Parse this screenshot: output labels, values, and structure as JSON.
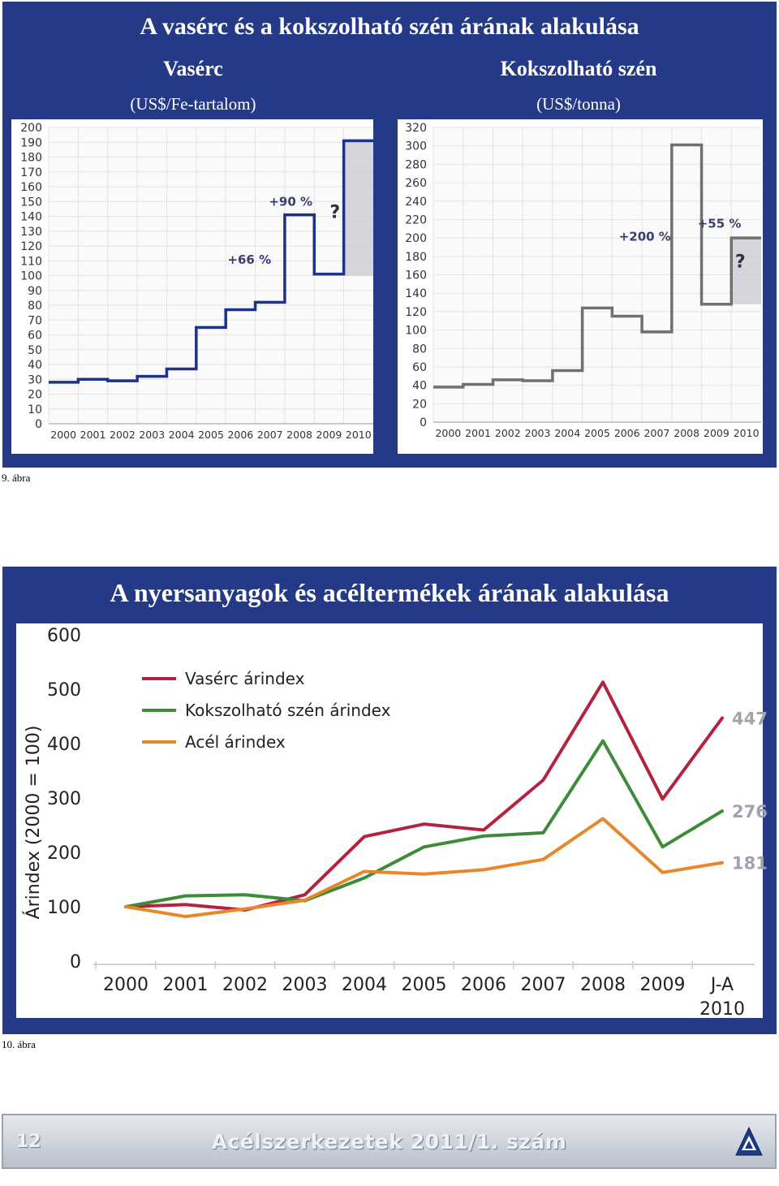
{
  "figure9": {
    "title": "A vasérc és a kokszolható szén árának alakulása",
    "caption": "9. ábra"
  },
  "figure10": {
    "title": "A nyersanyagok és acéltermékek árának alakulása",
    "caption": "10. ábra"
  },
  "footer": {
    "page_number": "12",
    "journal": "Acélszerkezetek 2011/1. szám",
    "logo_icon": "triangle-logo-icon"
  },
  "colors": {
    "panel_bg": "#243a86",
    "step_line": "#1e3388",
    "step_line_gray": "#707070",
    "iron_ore": "#b52240",
    "coking_coal": "#3e8c3a",
    "steel": "#e8862a",
    "value_label": "#a0a3aa"
  },
  "chart_data": [
    {
      "type": "line",
      "step": true,
      "title": "Vasérc",
      "subtitle": "(US$/Fe-tartalom)",
      "categories": [
        "2000",
        "2001",
        "2002",
        "2003",
        "2004",
        "2005",
        "2006",
        "2007",
        "2008",
        "2009",
        "2010"
      ],
      "ylim": [
        0,
        200
      ],
      "y_ticks": [
        "0",
        "10",
        "20",
        "30",
        "40",
        "50",
        "60",
        "70",
        "80",
        "90",
        "100",
        "110",
        "120",
        "130",
        "140",
        "150",
        "160",
        "170",
        "180",
        "190",
        "200"
      ],
      "x_points": [
        2000,
        2001,
        2002,
        2003,
        2004,
        2005,
        2006,
        2007,
        2008,
        2009,
        2010
      ],
      "values": [
        28,
        30,
        29,
        32,
        37,
        65,
        77,
        82,
        141,
        101,
        191
      ],
      "grid": true,
      "forecast_band": {
        "from": 2010,
        "to": 2011,
        "ymin": 100,
        "ymax": 191
      },
      "annotations": [
        {
          "text": "+66 %",
          "x": 2006.8,
          "y": 108
        },
        {
          "text": "+90 %",
          "x": 2008.2,
          "y": 147
        },
        {
          "text": "?",
          "x": 2009.7,
          "y": 139
        }
      ]
    },
    {
      "type": "line",
      "step": true,
      "title": "Kokszolható szén",
      "subtitle": "(US$/tonna)",
      "categories": [
        "2000",
        "2001",
        "2002",
        "2003",
        "2004",
        "2005",
        "2006",
        "2007",
        "2008",
        "2009",
        "2010"
      ],
      "ylim": [
        0,
        320
      ],
      "y_ticks": [
        "0",
        "20",
        "40",
        "60",
        "80",
        "100",
        "120",
        "140",
        "160",
        "180",
        "200",
        "220",
        "240",
        "260",
        "280",
        "300",
        "320"
      ],
      "x_points": [
        2000,
        2001,
        2002,
        2003,
        2004,
        2005,
        2006,
        2007,
        2008,
        2009,
        2010
      ],
      "values": [
        38,
        41,
        46,
        45,
        56,
        124,
        115,
        98,
        301,
        128,
        200
      ],
      "grid": true,
      "forecast_band": {
        "from": 2010,
        "to": 2011,
        "ymin": 128,
        "ymax": 200
      },
      "annotations": [
        {
          "text": "+200 %",
          "x": 2007.1,
          "y": 197
        },
        {
          "text": "+55 %",
          "x": 2009.6,
          "y": 211
        },
        {
          "text": "?",
          "x": 2010.3,
          "y": 168
        }
      ]
    },
    {
      "type": "line",
      "title": "",
      "ylabel": "Árindex (2000 = 100)",
      "categories": [
        "2000",
        "2001",
        "2002",
        "2003",
        "2004",
        "2005",
        "2006",
        "2007",
        "2008",
        "2009",
        "J-A\n2010"
      ],
      "ylim": [
        0,
        600
      ],
      "y_ticks": [
        "0",
        "100",
        "200",
        "300",
        "400",
        "500",
        "600"
      ],
      "legend": "top-left",
      "grid": false,
      "series": [
        {
          "name": "Vasérc árindex",
          "color": "#b52240",
          "values": [
            100,
            104,
            94,
            122,
            229,
            252,
            241,
            333,
            513,
            298,
            447
          ],
          "end_label": "447"
        },
        {
          "name": "Kokszolható szén árindex",
          "color": "#3e8c3a",
          "values": [
            100,
            120,
            122,
            111,
            153,
            210,
            230,
            236,
            405,
            210,
            276
          ],
          "end_label": "276"
        },
        {
          "name": "Acél árindex",
          "color": "#e8862a",
          "values": [
            100,
            82,
            96,
            112,
            165,
            160,
            168,
            187,
            262,
            163,
            181
          ],
          "end_label": "181"
        }
      ]
    }
  ]
}
